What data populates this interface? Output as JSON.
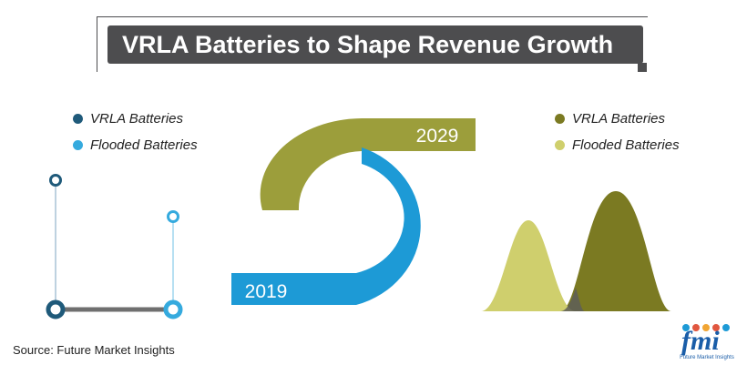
{
  "title": "VRLA Batteries to Shape Revenue Growth",
  "colors": {
    "title_bg": "#4d4d4f",
    "vrla_2019": "#1f5a7a",
    "flooded_2019": "#35aade",
    "vrla_2029": "#7b7a22",
    "flooded_2029": "#cfcf6d",
    "ring_2019": "#1d9ad6",
    "ring_2029": "#9c9e3b",
    "connector": "#6f6f6f"
  },
  "left_legend": {
    "items": [
      {
        "label": "VRLA Batteries",
        "color": "#1f5a7a"
      },
      {
        "label": "Flooded Batteries",
        "color": "#35aade"
      }
    ]
  },
  "right_legend": {
    "items": [
      {
        "label": "VRLA Batteries",
        "color": "#7b7a22"
      },
      {
        "label": "Flooded Batteries",
        "color": "#cfcf6d"
      }
    ]
  },
  "ring": {
    "label_start": "2019",
    "label_end": "2029"
  },
  "source": "Source: Future Market Insights",
  "logo": {
    "text": "fmi",
    "subtitle": "Future Market Insights"
  },
  "chart_data": [
    {
      "type": "line",
      "title": "",
      "series": [
        {
          "name": "VRLA Batteries",
          "relative_level": 1.0
        },
        {
          "name": "Flooded Batteries",
          "relative_level": 0.69
        }
      ]
    },
    {
      "type": "area",
      "title": "",
      "series": [
        {
          "name": "Flooded Batteries",
          "relative_peak": 0.77
        },
        {
          "name": "VRLA Batteries",
          "relative_peak": 1.0
        }
      ]
    }
  ]
}
